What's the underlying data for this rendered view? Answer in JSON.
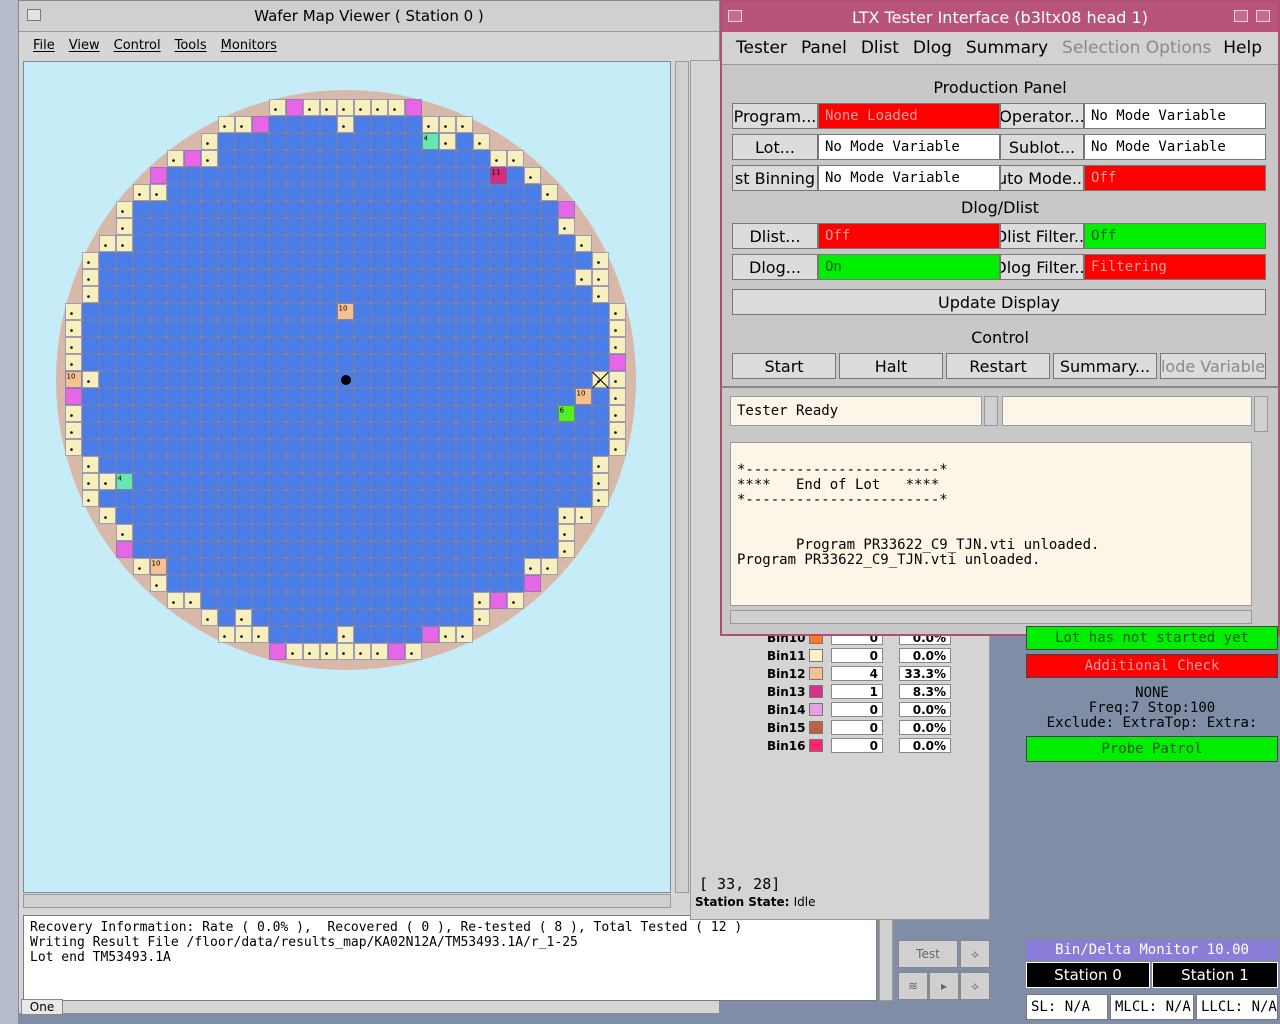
{
  "wafer_window": {
    "title": "Wafer Map Viewer ( Station 0 )",
    "menu": [
      "File",
      "View",
      "Control",
      "Tools",
      "Monitors"
    ],
    "cell_labels": [
      "4",
      "11",
      "10",
      "10",
      "6",
      "10",
      "4",
      "10"
    ],
    "coords": "[ 33, 28]",
    "station_state_label": "Station State:",
    "station_state_value": "Idle",
    "log_lines": [
      "Recovery Information: Rate ( 0.0% ),  Recovered ( 0 ), Re-tested ( 8 ), Total Tested ( 12 )",
      "",
      "Writing Result File /floor/data/results_map/KA02N12A/TM53493.1A/r_1-25",
      "Lot end TM53493.1A"
    ],
    "test_button": "Test",
    "desktop_label": "One",
    "colors": {
      "pass": "#4a7de8",
      "edge": "#f7efbd",
      "ink": "#e666e6",
      "bin4": "#66e6b0",
      "bin6": "#55ee22",
      "bin10": "#f5c190",
      "bin11": "#d62e7e"
    }
  },
  "bins": [
    {
      "name": "Bin10",
      "count": "0",
      "pct": "0.0%",
      "color": "#ff7722"
    },
    {
      "name": "Bin11",
      "count": "0",
      "pct": "0.0%",
      "color": "#fff0c8"
    },
    {
      "name": "Bin12",
      "count": "4",
      "pct": "33.3%",
      "color": "#f5c190"
    },
    {
      "name": "Bin13",
      "count": "1",
      "pct": "8.3%",
      "color": "#d6338a"
    },
    {
      "name": "Bin14",
      "count": "0",
      "pct": "0.0%",
      "color": "#e6a0e0"
    },
    {
      "name": "Bin15",
      "count": "0",
      "pct": "0.0%",
      "color": "#c06040"
    },
    {
      "name": "Bin16",
      "count": "0",
      "pct": "0.0%",
      "color": "#ff2277"
    }
  ],
  "ltx": {
    "title": "LTX Tester Interface (b3ltx08 head 1)",
    "menu": [
      "Tester",
      "Panel",
      "Dlist",
      "Dlog",
      "Summary",
      "Selection Options",
      "Help"
    ],
    "production_title": "Production Panel",
    "program_btn": "Program...",
    "program_val": "None Loaded",
    "operator_btn": "Operator...",
    "operator_val": "No Mode Variable",
    "lot_btn": "Lot...",
    "lot_val": "No Mode Variable",
    "sublot_btn": "Sublot...",
    "sublot_val": "No Mode Variable",
    "binning_btn": "st Binning",
    "binning_val": "No Mode Variable",
    "automode_btn": "uto Mode...",
    "automode_val": "Off",
    "dlog_title": "Dlog/Dlist",
    "dlist_btn": "Dlist...",
    "dlist_val": "Off",
    "dlistfilter_btn": "Dlist Filter...",
    "dlistfilter_val": "Off",
    "dlog_btn": "Dlog...",
    "dlog_val": "On",
    "dlogfilter_btn": "Dlog Filter...",
    "dlogfilter_val": "Filtering",
    "update_btn": "Update Display",
    "control_title": "Control",
    "start_btn": "Start",
    "halt_btn": "Halt",
    "restart_btn": "Restart",
    "summary_btn": "Summary...",
    "mode_btn": "lode Variable",
    "status": "Tester Ready",
    "log": "*-----------------------*\n****   End of Lot   ****\n*-----------------------*\n\n\n       Program PR33622_C9_TJN.vti unloaded.\nProgram PR33622_C9_TJN.vti unloaded."
  },
  "right_widgets": {
    "lot_not_started": "Lot has not started yet",
    "additional_check": "Additional Check",
    "none_text": "NONE",
    "freq_text": "Freq:7 Stop:100",
    "exclude_text": "Exclude: ExtraTop: Extra:",
    "probe_patrol": "Probe Patrol",
    "bin_delta_title": "Bin/Delta Monitor 10.00",
    "station0": "Station 0",
    "station1": "Station 1",
    "sl": "SL: N/A",
    "mlcl": "MLCL: N/A",
    "llcl": "LLCL: N/A"
  }
}
